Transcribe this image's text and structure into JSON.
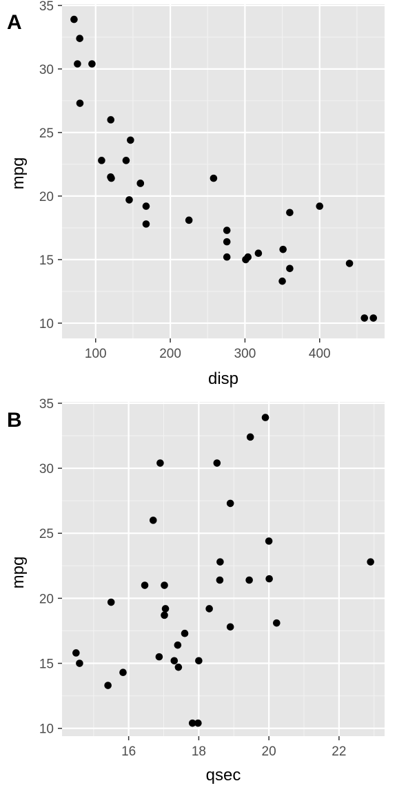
{
  "chart_data": [
    {
      "type": "scatter",
      "tag": "A",
      "xlabel": "disp",
      "ylabel": "mpg",
      "xlim": [
        55,
        487
      ],
      "ylim": [
        8.8,
        35.1
      ],
      "x_ticks": [
        100,
        200,
        300,
        400
      ],
      "y_ticks": [
        10,
        15,
        20,
        25,
        30,
        35
      ],
      "grid": true,
      "point_color": "#000000",
      "panel_bg": "#e6e6e6",
      "x": [
        160,
        160,
        108,
        258,
        360,
        225,
        360,
        146.7,
        140.8,
        167.6,
        167.6,
        275.8,
        275.8,
        275.8,
        472,
        460,
        440,
        78.7,
        75.7,
        71.1,
        120.1,
        318,
        304,
        350,
        400,
        79,
        120.3,
        95.1,
        351,
        145,
        301,
        121
      ],
      "y": [
        21.0,
        21.0,
        22.8,
        21.4,
        18.7,
        18.1,
        14.3,
        24.4,
        22.8,
        19.2,
        17.8,
        16.4,
        17.3,
        15.2,
        10.4,
        10.4,
        14.7,
        32.4,
        30.4,
        33.9,
        21.5,
        15.5,
        15.2,
        13.3,
        19.2,
        27.3,
        26.0,
        30.4,
        15.8,
        19.7,
        15.0,
        21.4
      ]
    },
    {
      "type": "scatter",
      "tag": "B",
      "xlabel": "qsec",
      "ylabel": "mpg",
      "xlim": [
        14.1,
        23.3
      ],
      "ylim": [
        9.4,
        35.1
      ],
      "x_ticks": [
        16,
        18,
        20,
        22
      ],
      "y_ticks": [
        10,
        15,
        20,
        25,
        30,
        35
      ],
      "grid": true,
      "point_color": "#000000",
      "panel_bg": "#e6e6e6",
      "x": [
        16.46,
        17.02,
        18.61,
        19.44,
        17.02,
        20.22,
        15.84,
        20.0,
        22.9,
        18.3,
        18.9,
        17.4,
        17.6,
        18.0,
        17.98,
        17.82,
        17.42,
        19.47,
        18.52,
        19.9,
        20.01,
        16.87,
        17.3,
        15.41,
        17.05,
        18.9,
        16.7,
        16.9,
        14.5,
        15.5,
        14.6,
        18.6
      ],
      "y": [
        21.0,
        21.0,
        22.8,
        21.4,
        18.7,
        18.1,
        14.3,
        24.4,
        22.8,
        19.2,
        17.8,
        16.4,
        17.3,
        15.2,
        10.4,
        10.4,
        14.7,
        32.4,
        30.4,
        33.9,
        21.5,
        15.5,
        15.2,
        13.3,
        19.2,
        27.3,
        26.0,
        30.4,
        15.8,
        19.7,
        15.0,
        21.4
      ]
    }
  ]
}
